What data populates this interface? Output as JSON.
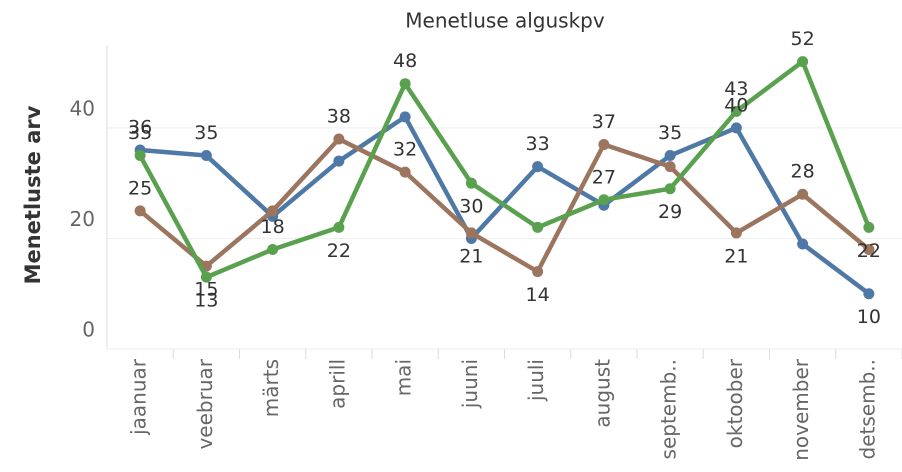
{
  "chart_data": {
    "type": "line",
    "title": "Menetluse alguskpv",
    "y_label": "Menetluste arv",
    "categories": [
      "jaanuar",
      "veebruar",
      "märts",
      "aprill",
      "mai",
      "juuni",
      "juuli",
      "august",
      "septemb..",
      "oktoober",
      "november",
      "detsemb.."
    ],
    "series": [
      {
        "color": "#4e79a7",
        "values": [
          36,
          35,
          24,
          34,
          42,
          20,
          33,
          26,
          35,
          40,
          19,
          10
        ],
        "value_labels": [
          "36",
          "35",
          null,
          null,
          null,
          null,
          "33",
          null,
          "35",
          "40",
          null,
          "10"
        ]
      },
      {
        "color": "#9c755f",
        "values": [
          25,
          15,
          25,
          38,
          32,
          21,
          14,
          37,
          33,
          21,
          28,
          18
        ],
        "value_labels": [
          "25",
          "15",
          null,
          "38",
          "32",
          "21",
          "14",
          "37",
          null,
          "21",
          "28",
          null
        ]
      },
      {
        "color": "#59a14f",
        "values": [
          35,
          13,
          18,
          22,
          48,
          30,
          22,
          27,
          29,
          43,
          52,
          22
        ],
        "value_labels": [
          "35",
          "13",
          "18",
          "22",
          "48",
          "30",
          null,
          "27",
          "29",
          "43",
          "52",
          "22"
        ]
      }
    ],
    "ylim": [
      0,
      55
    ],
    "yticks": [
      0,
      20,
      40
    ],
    "grid": true
  }
}
